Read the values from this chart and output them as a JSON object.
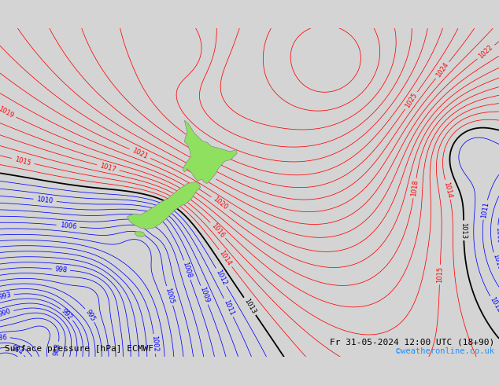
{
  "title_left": "Surface pressure [hPa] ECMWF",
  "title_right": "Fr 31-05-2024 12:00 UTC (18+90)",
  "copyright": "©weatheronline.co.uk",
  "background_color": "#d4d4d4",
  "land_color_nz": "#90e060",
  "land_border_color": "#888888",
  "contour_red_color": "#ff0000",
  "contour_blue_color": "#0000ff",
  "contour_black_color": "#000000",
  "text_color": "#000000",
  "figsize": [
    6.34,
    4.9
  ],
  "dpi": 100,
  "label_fontsize": 6.0,
  "footer_fontsize": 8.0,
  "copyright_fontsize": 7.5,
  "copyright_color": "#1e90ff"
}
